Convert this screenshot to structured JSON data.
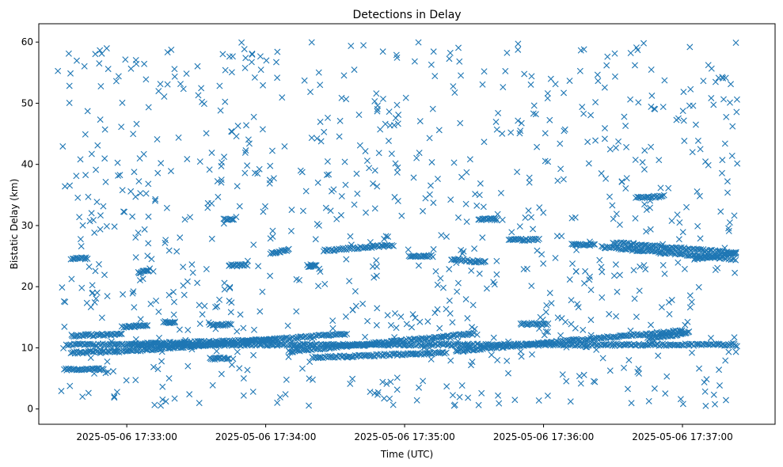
{
  "chart_data": {
    "type": "scatter",
    "title": "Detections in Delay",
    "xlabel": "Time (UTC)",
    "ylabel": "Bistatic Delay (km)",
    "marker": "x",
    "color": "#1f77b4",
    "grid": false,
    "xlim": [
      "2025-05-06 17:32:22",
      "2025-05-06 17:37:40"
    ],
    "ylim": [
      -2.5,
      63
    ],
    "x_ticks": [
      "2025-05-06 17:33:00",
      "2025-05-06 17:34:00",
      "2025-05-06 17:35:00",
      "2025-05-06 17:36:00",
      "2025-05-06 17:37:00"
    ],
    "y_ticks": [
      0,
      10,
      20,
      30,
      40,
      50,
      60
    ],
    "tracks": [
      {
        "start": [
          "2025-05-06 17:32:33",
          6.5
        ],
        "end": [
          "2025-05-06 17:32:50",
          6.5
        ]
      },
      {
        "start": [
          "2025-05-06 17:32:34",
          10.5
        ],
        "end": [
          "2025-05-06 17:37:23",
          10.5
        ]
      },
      {
        "start": [
          "2025-05-06 17:32:36",
          9.2
        ],
        "end": [
          "2025-05-06 17:32:55",
          9.5
        ]
      },
      {
        "start": [
          "2025-05-06 17:32:36",
          12.0
        ],
        "end": [
          "2025-05-06 17:32:58",
          12.2
        ]
      },
      {
        "start": [
          "2025-05-06 17:32:36",
          24.6
        ],
        "end": [
          "2025-05-06 17:32:43",
          24.6
        ]
      },
      {
        "start": [
          "2025-05-06 17:32:55",
          9.3
        ],
        "end": [
          "2025-05-06 17:34:35",
          12.3
        ]
      },
      {
        "start": [
          "2025-05-06 17:32:58",
          13.4
        ],
        "end": [
          "2025-05-06 17:33:09",
          13.6
        ]
      },
      {
        "start": [
          "2025-05-06 17:33:02",
          10.6
        ],
        "end": [
          "2025-05-06 17:34:05",
          11.3
        ]
      },
      {
        "start": [
          "2025-05-06 17:33:05",
          22.2
        ],
        "end": [
          "2025-05-06 17:33:10",
          22.8
        ]
      },
      {
        "start": [
          "2025-05-06 17:33:16",
          14.2
        ],
        "end": [
          "2025-05-06 17:33:21",
          14.2
        ]
      },
      {
        "start": [
          "2025-05-06 17:33:36",
          8.2
        ],
        "end": [
          "2025-05-06 17:33:44",
          8.3
        ]
      },
      {
        "start": [
          "2025-05-06 17:33:36",
          13.8
        ],
        "end": [
          "2025-05-06 17:33:45",
          13.8
        ]
      },
      {
        "start": [
          "2025-05-06 17:33:42",
          31.0
        ],
        "end": [
          "2025-05-06 17:33:46",
          31.0
        ]
      },
      {
        "start": [
          "2025-05-06 17:33:44",
          23.5
        ],
        "end": [
          "2025-05-06 17:33:52",
          23.5
        ]
      },
      {
        "start": [
          "2025-05-06 17:34:02",
          25.5
        ],
        "end": [
          "2025-05-06 17:34:10",
          26.0
        ]
      },
      {
        "start": [
          "2025-05-06 17:34:10",
          9.4
        ],
        "end": [
          "2025-05-06 17:35:30",
          12.3
        ]
      },
      {
        "start": [
          "2025-05-06 17:34:18",
          23.4
        ],
        "end": [
          "2025-05-06 17:34:22",
          23.4
        ]
      },
      {
        "start": [
          "2025-05-06 17:34:20",
          8.4
        ],
        "end": [
          "2025-05-06 17:35:18",
          9.2
        ]
      },
      {
        "start": [
          "2025-05-06 17:34:25",
          25.9
        ],
        "end": [
          "2025-05-06 17:34:55",
          26.8
        ]
      },
      {
        "start": [
          "2025-05-06 17:35:02",
          25.0
        ],
        "end": [
          "2025-05-06 17:35:12",
          25.0
        ]
      },
      {
        "start": [
          "2025-05-06 17:35:20",
          24.5
        ],
        "end": [
          "2025-05-06 17:35:35",
          24.0
        ]
      },
      {
        "start": [
          "2025-05-06 17:35:22",
          9.5
        ],
        "end": [
          "2025-05-06 17:37:00",
          12.8
        ]
      },
      {
        "start": [
          "2025-05-06 17:35:32",
          31.0
        ],
        "end": [
          "2025-05-06 17:35:40",
          31.0
        ]
      },
      {
        "start": [
          "2025-05-06 17:35:45",
          27.7
        ],
        "end": [
          "2025-05-06 17:35:58",
          27.7
        ]
      },
      {
        "start": [
          "2025-05-06 17:35:50",
          13.9
        ],
        "end": [
          "2025-05-06 17:36:02",
          13.9
        ]
      },
      {
        "start": [
          "2025-05-06 17:36:12",
          26.9
        ],
        "end": [
          "2025-05-06 17:36:22",
          26.9
        ]
      },
      {
        "start": [
          "2025-05-06 17:36:25",
          26.5
        ],
        "end": [
          "2025-05-06 17:37:23",
          24.5
        ]
      },
      {
        "start": [
          "2025-05-06 17:36:30",
          27.2
        ],
        "end": [
          "2025-05-06 17:37:23",
          25.5
        ]
      },
      {
        "start": [
          "2025-05-06 17:36:40",
          34.5
        ],
        "end": [
          "2025-05-06 17:36:52",
          34.8
        ]
      },
      {
        "start": [
          "2025-05-06 17:36:45",
          11.5
        ],
        "end": [
          "2025-05-06 17:37:03",
          12.5
        ]
      },
      {
        "start": [
          "2025-05-06 17:37:05",
          24.5
        ],
        "end": [
          "2025-05-06 17:37:23",
          25.5
        ]
      }
    ]
  }
}
